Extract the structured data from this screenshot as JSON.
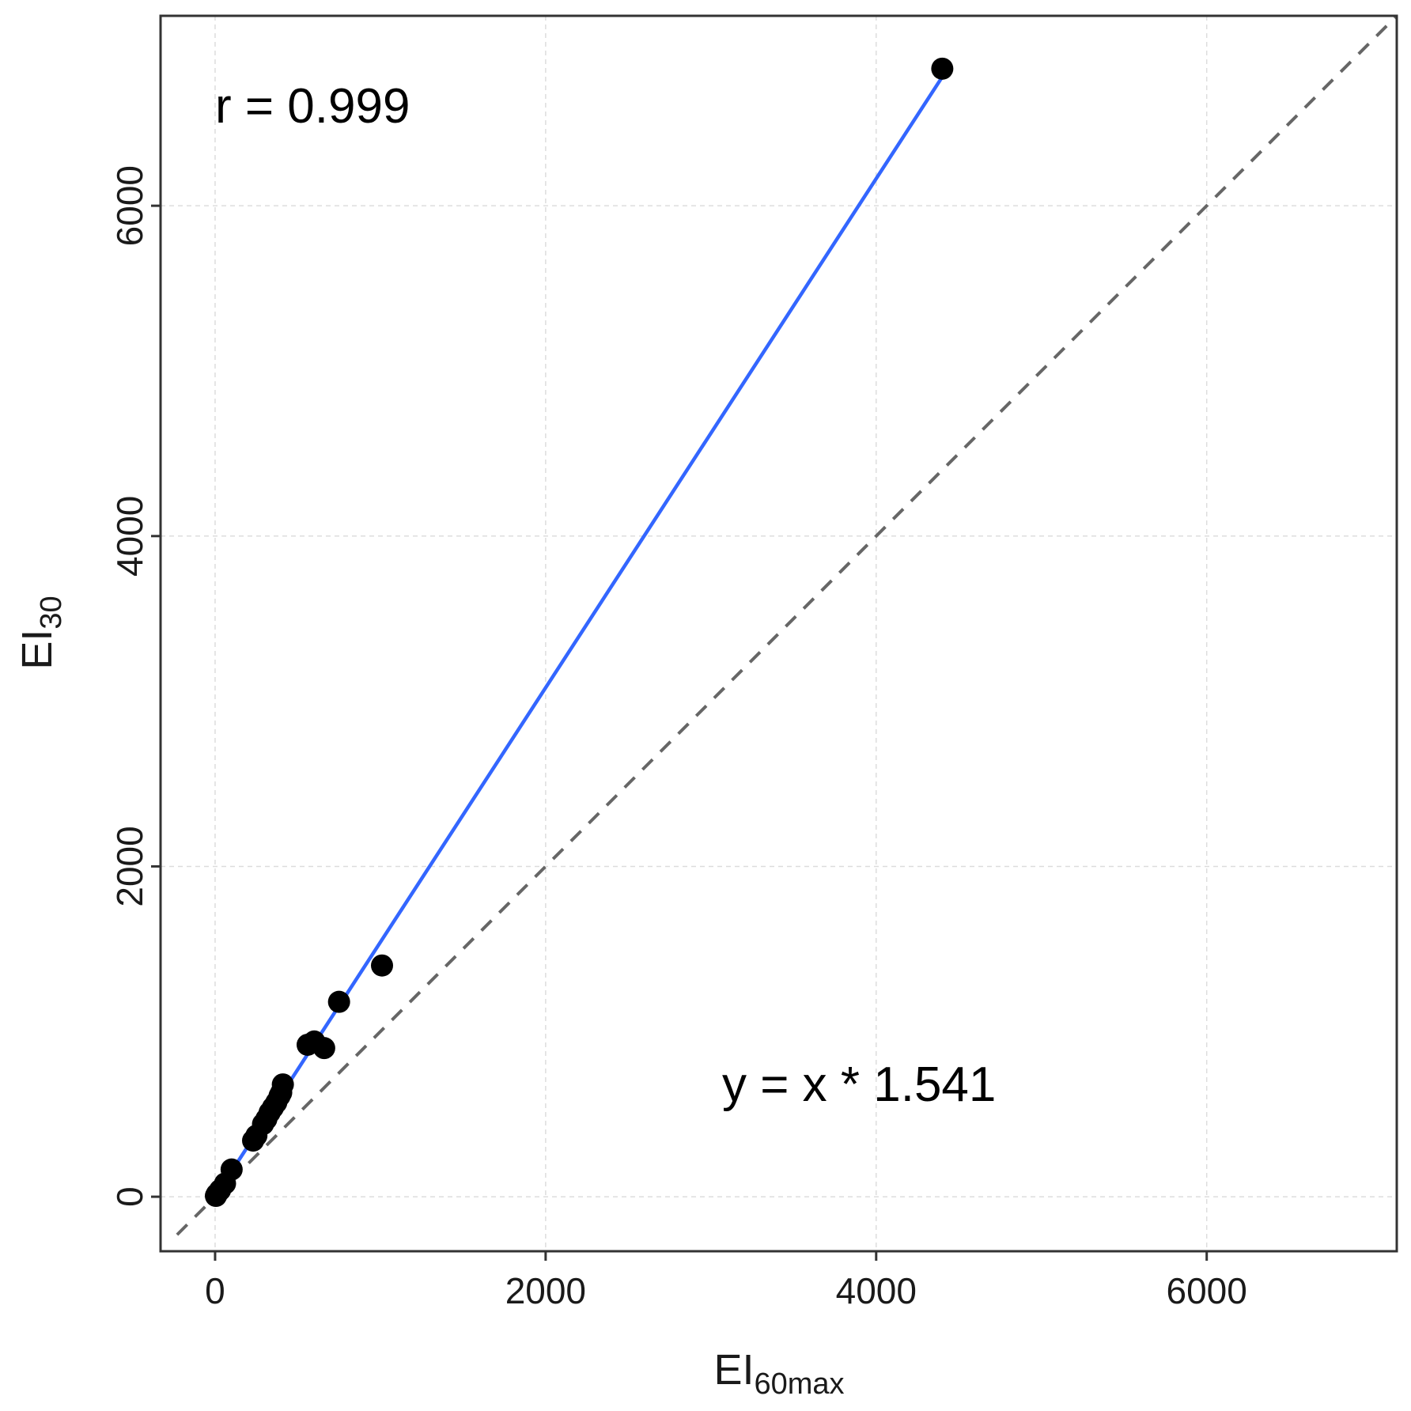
{
  "chart_data": {
    "type": "scatter",
    "title": "",
    "xlabel": {
      "main": "EI",
      "sub": "60max"
    },
    "ylabel": {
      "main": "EI",
      "sub": "30"
    },
    "xlim": [
      -330,
      7150
    ],
    "ylim": [
      -330,
      7150
    ],
    "x_ticks": [
      0,
      2000,
      4000,
      6000
    ],
    "y_ticks": [
      0,
      2000,
      4000,
      6000
    ],
    "x_tick_labels": [
      "0",
      "2000",
      "4000",
      "6000"
    ],
    "y_tick_labels": [
      "0",
      "2000",
      "4000",
      "6000"
    ],
    "grid": true,
    "points": [
      {
        "x": 5,
        "y": 5
      },
      {
        "x": 10,
        "y": 15
      },
      {
        "x": 30,
        "y": 40
      },
      {
        "x": 60,
        "y": 80
      },
      {
        "x": 100,
        "y": 165
      },
      {
        "x": 230,
        "y": 340
      },
      {
        "x": 250,
        "y": 370
      },
      {
        "x": 290,
        "y": 440
      },
      {
        "x": 310,
        "y": 470
      },
      {
        "x": 330,
        "y": 510
      },
      {
        "x": 350,
        "y": 540
      },
      {
        "x": 370,
        "y": 570
      },
      {
        "x": 390,
        "y": 610
      },
      {
        "x": 400,
        "y": 630
      },
      {
        "x": 410,
        "y": 680
      },
      {
        "x": 560,
        "y": 920
      },
      {
        "x": 600,
        "y": 940
      },
      {
        "x": 660,
        "y": 900
      },
      {
        "x": 750,
        "y": 1180
      },
      {
        "x": 1010,
        "y": 1400
      },
      {
        "x": 4400,
        "y": 6830
      }
    ],
    "fit_line": {
      "slope": 1.541,
      "x_range": [
        0,
        4400
      ],
      "color": "#3366ff"
    },
    "identity_line": {
      "x_range": [
        -230,
        7150
      ],
      "color": "#666666"
    },
    "point_color": "#000000",
    "annotations": {
      "correlation": "r = 0.999",
      "equation": "y = x * 1.541"
    }
  }
}
